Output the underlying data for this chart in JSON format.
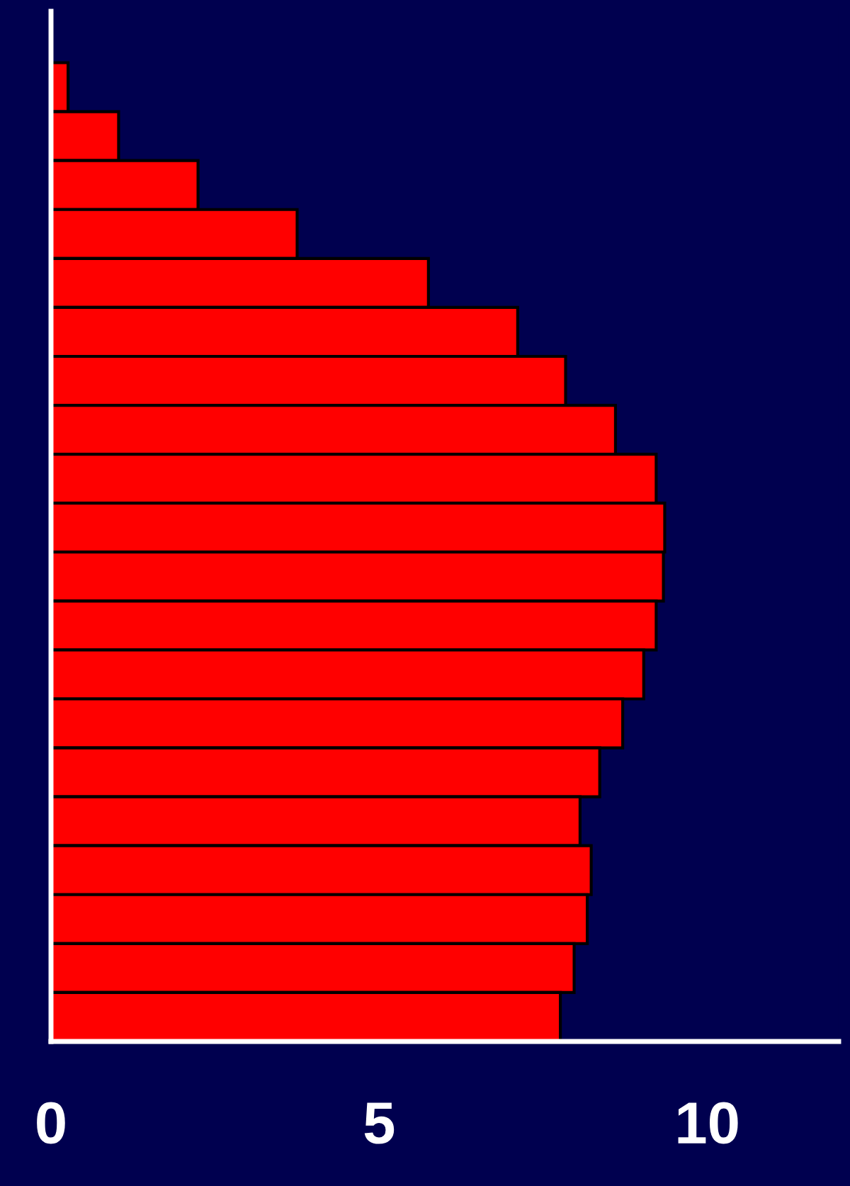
{
  "chart_data": {
    "type": "bar",
    "orientation": "horizontal",
    "categories": [
      null,
      null,
      null,
      null,
      null,
      null,
      null,
      null,
      null,
      null,
      null,
      null,
      null,
      null,
      null,
      null,
      null,
      null,
      null,
      null
    ],
    "values": [
      0.26,
      1.03,
      2.24,
      3.75,
      5.75,
      7.11,
      7.84,
      8.6,
      9.22,
      9.35,
      9.33,
      9.22,
      9.03,
      8.71,
      8.36,
      8.06,
      8.23,
      8.17,
      7.97,
      7.76
    ],
    "color": "#ff0000",
    "xlim": [
      0,
      12
    ],
    "xticks": [
      0,
      5,
      10
    ],
    "grid": false,
    "tick_labels": "x"
  }
}
